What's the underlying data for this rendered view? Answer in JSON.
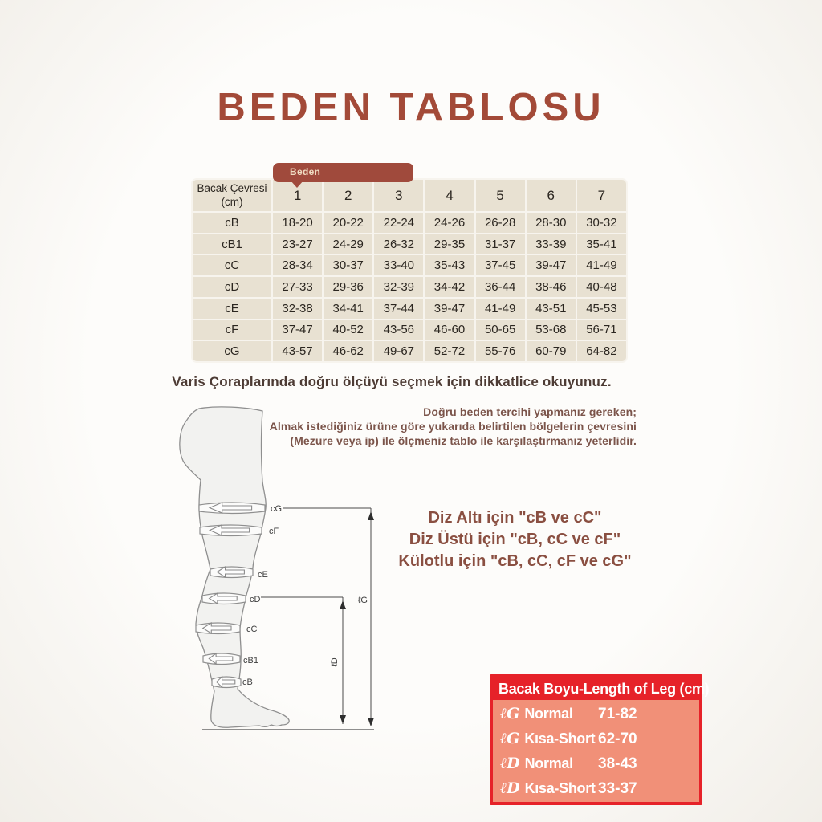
{
  "title": "BEDEN TABLOSU",
  "size_table": {
    "tab_label": "Beden",
    "corner_header": "Bacak Çevresi (cm)",
    "columns": [
      "1",
      "2",
      "3",
      "4",
      "5",
      "6",
      "7"
    ],
    "rows": [
      {
        "label": "cB",
        "values": [
          "18-20",
          "20-22",
          "22-24",
          "24-26",
          "26-28",
          "28-30",
          "30-32"
        ]
      },
      {
        "label": "cB1",
        "values": [
          "23-27",
          "24-29",
          "26-32",
          "29-35",
          "31-37",
          "33-39",
          "35-41"
        ]
      },
      {
        "label": "cC",
        "values": [
          "28-34",
          "30-37",
          "33-40",
          "35-43",
          "37-45",
          "39-47",
          "41-49"
        ]
      },
      {
        "label": "cD",
        "values": [
          "27-33",
          "29-36",
          "32-39",
          "34-42",
          "36-44",
          "38-46",
          "40-48"
        ]
      },
      {
        "label": "cE",
        "values": [
          "32-38",
          "34-41",
          "37-44",
          "39-47",
          "41-49",
          "43-51",
          "45-53"
        ]
      },
      {
        "label": "cF",
        "values": [
          "37-47",
          "40-52",
          "43-56",
          "46-60",
          "50-65",
          "53-68",
          "56-71"
        ]
      },
      {
        "label": "cG",
        "values": [
          "43-57",
          "46-62",
          "49-67",
          "52-72",
          "55-76",
          "60-79",
          "64-82"
        ]
      }
    ]
  },
  "notice": "Varis Çoraplarında doğru ölçüyü seçmek için dikkatlice okuyunuz.",
  "instructions": [
    "Doğru beden tercihi yapmanız gereken;",
    "Almak istediğiniz ürüne göre yukarıda belirtilen bölgelerin çevresini",
    "(Mezure veya ip) ile ölçmeniz tablo ile karşılaştırmanız yeterlidir."
  ],
  "recommendations": [
    "Diz Altı için \"cB ve cC\"",
    "Diz Üstü için \"cB, cC ve cF\"",
    "Külotlu için \"cB, cC, cF ve cG\""
  ],
  "leg_diagram": {
    "band_labels": [
      "cG",
      "cF",
      "cE",
      "cD",
      "cC",
      "cB1",
      "cB"
    ],
    "lg_label": "ℓG",
    "ld_label": "ℓD"
  },
  "leg_length_table": {
    "header": "Bacak Boyu-Length of Leg (cm)",
    "rows": [
      {
        "symbol": "ℓG",
        "label": "Normal",
        "value": "71-82"
      },
      {
        "symbol": "ℓG",
        "label": "Kısa-Short",
        "value": "62-70"
      },
      {
        "symbol": "ℓD",
        "label": "Normal",
        "value": "38-43"
      },
      {
        "symbol": "ℓD",
        "label": "Kısa-Short",
        "value": "33-37"
      }
    ]
  },
  "colors": {
    "accent_brown": "#a34a38",
    "tab_brown": "#a04a3c",
    "table_beige": "#e8e1d2",
    "table_text": "#2b2620",
    "red": "#e62229",
    "salmon": "#f19078",
    "white_text": "#ffffff"
  }
}
